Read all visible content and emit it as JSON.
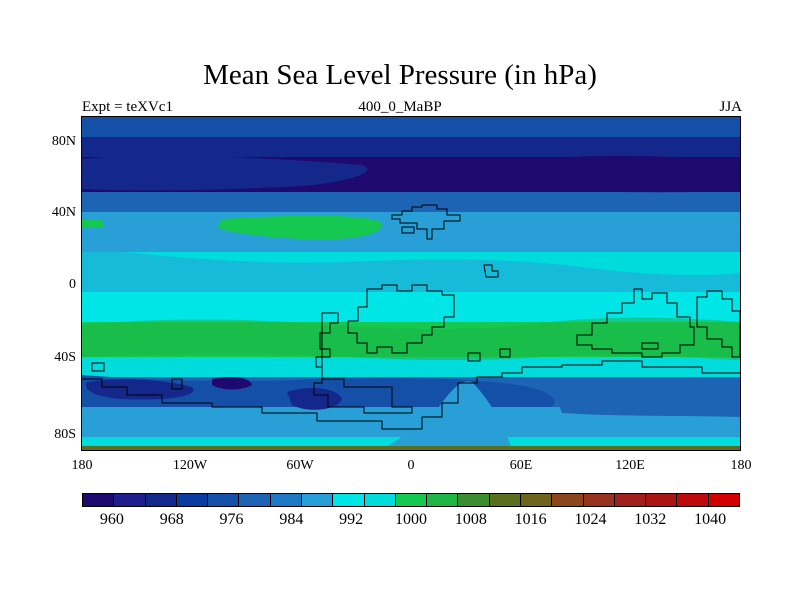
{
  "title": "Mean Sea Level Pressure (in hPa)",
  "subtitle_left": "Expt = teXVc1",
  "subtitle_center": "400_0_MaBP",
  "subtitle_right": "JJA",
  "y_axis": {
    "labels": [
      "80N",
      "40N",
      "0",
      "40S",
      "80S"
    ],
    "values": [
      80,
      40,
      0,
      -40,
      -80
    ],
    "range": [
      -90,
      90
    ]
  },
  "x_axis": {
    "labels": [
      "180",
      "120W",
      "60W",
      "0",
      "60E",
      "120E",
      "180"
    ],
    "values": [
      -180,
      -120,
      -60,
      0,
      60,
      120,
      180
    ],
    "range": [
      -180,
      180
    ]
  },
  "colorbar": {
    "colors": [
      "#1e0a6e",
      "#1e1e8c",
      "#14288c",
      "#0a3ca0",
      "#1450a8",
      "#1e64b4",
      "#1e78c3",
      "#28a0d7",
      "#00e6e6",
      "#00dcdc",
      "#14c850",
      "#1eb446",
      "#3c8c32",
      "#5a6e1e",
      "#6e641e",
      "#8c461e",
      "#96321e",
      "#a01e1e",
      "#aa1414",
      "#be0a0a",
      "#d20000"
    ],
    "labels": [
      "960",
      "968",
      "976",
      "984",
      "992",
      "1000",
      "1008",
      "1016",
      "1024",
      "1032",
      "1040"
    ],
    "label_values": [
      960,
      968,
      976,
      984,
      992,
      1000,
      1008,
      1016,
      1024,
      1032,
      1040
    ],
    "min": 956,
    "max": 1044
  }
}
